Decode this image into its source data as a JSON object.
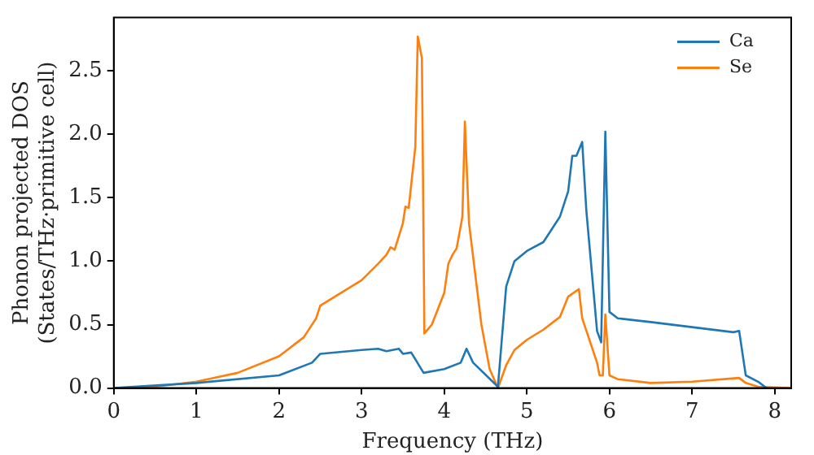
{
  "chart_data": {
    "type": "line",
    "xlabel": "Frequency (THz)",
    "ylabel": "Phonon projected DOS\n(States/THz·primitive cell)",
    "xlim": [
      0,
      8.2
    ],
    "ylim": [
      0,
      2.92
    ],
    "xticks": [
      0,
      1,
      2,
      3,
      4,
      5,
      6,
      7,
      8
    ],
    "yticks": [
      {
        "value": 0,
        "label": "0.0"
      },
      0.5,
      {
        "value": 1,
        "label": "1.0"
      },
      1.5,
      {
        "value": 2,
        "label": "2.0"
      },
      2.5
    ],
    "grid": false,
    "legend": "top right",
    "marker": "none",
    "line_style": "solid",
    "series": [
      {
        "name": "Ca",
        "color": "#1f77b4",
        "x": [
          0,
          1,
          2,
          2.4,
          2.5,
          3.0,
          3.2,
          3.3,
          3.45,
          3.5,
          3.6,
          3.75,
          4.0,
          4.2,
          4.27,
          4.35,
          4.65,
          4.75,
          4.85,
          5.0,
          5.2,
          5.4,
          5.5,
          5.55,
          5.6,
          5.67,
          5.72,
          5.85,
          5.9,
          5.95,
          6.0,
          6.1,
          6.5,
          7.0,
          7.5,
          7.57,
          7.65,
          7.8,
          7.9
        ],
        "values": [
          0,
          0.04,
          0.1,
          0.2,
          0.27,
          0.3,
          0.31,
          0.29,
          0.31,
          0.27,
          0.28,
          0.12,
          0.15,
          0.2,
          0.31,
          0.2,
          0.01,
          0.8,
          1.0,
          1.08,
          1.15,
          1.35,
          1.55,
          1.83,
          1.83,
          1.94,
          1.4,
          0.45,
          0.36,
          2.02,
          0.6,
          0.55,
          0.52,
          0.48,
          0.44,
          0.45,
          0.1,
          0.05,
          0.0
        ]
      },
      {
        "name": "Se",
        "color": "#ff7f0e",
        "x": [
          0,
          0.5,
          1,
          1.5,
          2,
          2.3,
          2.45,
          2.5,
          2.6,
          3.0,
          3.2,
          3.3,
          3.35,
          3.4,
          3.5,
          3.53,
          3.57,
          3.65,
          3.68,
          3.73,
          3.76,
          3.85,
          4.0,
          4.05,
          4.1,
          4.15,
          4.22,
          4.25,
          4.3,
          4.45,
          4.55,
          4.65,
          4.75,
          4.85,
          5.0,
          5.2,
          5.4,
          5.5,
          5.63,
          5.67,
          5.85,
          5.88,
          5.92,
          5.95,
          6.0,
          6.1,
          6.5,
          7.0,
          7.57,
          7.65,
          7.8,
          8.2
        ],
        "values": [
          0,
          0.01,
          0.05,
          0.12,
          0.25,
          0.4,
          0.55,
          0.65,
          0.69,
          0.85,
          0.98,
          1.05,
          1.11,
          1.09,
          1.3,
          1.43,
          1.42,
          1.9,
          2.77,
          2.6,
          0.43,
          0.5,
          0.75,
          0.98,
          1.05,
          1.1,
          1.35,
          2.1,
          1.3,
          0.5,
          0.15,
          0.0,
          0.18,
          0.3,
          0.38,
          0.46,
          0.56,
          0.72,
          0.78,
          0.55,
          0.2,
          0.1,
          0.1,
          0.58,
          0.1,
          0.07,
          0.04,
          0.05,
          0.08,
          0.04,
          0.01,
          0.0
        ]
      }
    ]
  }
}
